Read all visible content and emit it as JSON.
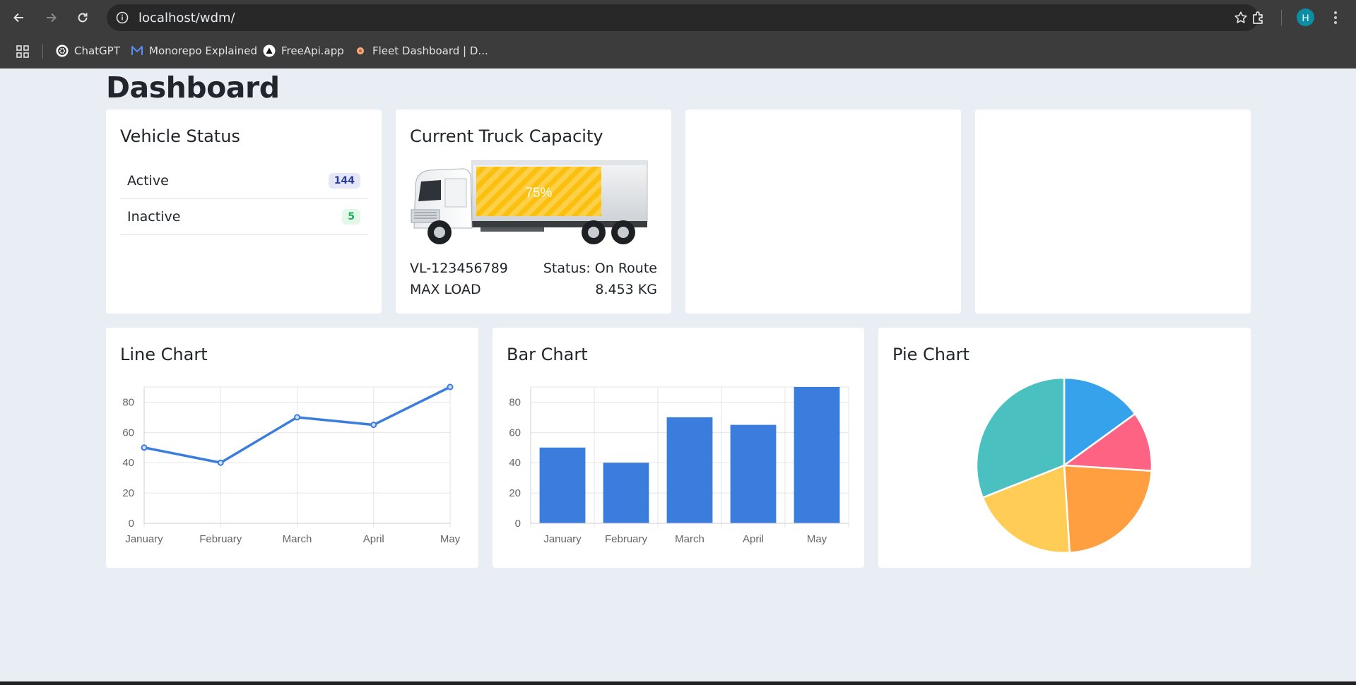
{
  "browser": {
    "url": "localhost/wdm/",
    "profile_initial": "H",
    "bookmarks": [
      {
        "label": "ChatGPT",
        "icon": "chatgpt-icon"
      },
      {
        "label": "Monorepo Explained",
        "icon": "monorepo-icon"
      },
      {
        "label": "FreeApi.app",
        "icon": "freeapi-icon"
      },
      {
        "label": "Fleet Dashboard | D...",
        "icon": "fleet-icon"
      }
    ]
  },
  "page": {
    "title": "Dashboard"
  },
  "vehicle_status": {
    "title": "Vehicle Status",
    "items": [
      {
        "label": "Active",
        "count": "144",
        "color": "#2b3c9c"
      },
      {
        "label": "Inactive",
        "count": "5",
        "color": "#1fae5c"
      }
    ]
  },
  "truck_capacity": {
    "title": "Current Truck Capacity",
    "fill_percent": 75,
    "fill_label": "75%",
    "vehicle_id": "VL-123456789",
    "status": "Status: On Route",
    "max_load_label": "MAX LOAD",
    "max_load_value": "8.453 KG",
    "fill_color": "#fbbf0e"
  },
  "line_chart": {
    "title": "Line Chart"
  },
  "bar_chart": {
    "title": "Bar Chart"
  },
  "pie_chart": {
    "title": "Pie Chart"
  },
  "chart_data": [
    {
      "type": "line",
      "title": "Line Chart",
      "categories": [
        "January",
        "February",
        "March",
        "April",
        "May"
      ],
      "values": [
        50,
        40,
        70,
        65,
        90
      ],
      "ylim": [
        0,
        90
      ],
      "yticks": [
        0,
        20,
        40,
        60,
        80
      ],
      "grid": true,
      "color": "#3b7ddd"
    },
    {
      "type": "bar",
      "title": "Bar Chart",
      "categories": [
        "January",
        "February",
        "March",
        "April",
        "May"
      ],
      "values": [
        50,
        40,
        70,
        65,
        90
      ],
      "ylim": [
        0,
        90
      ],
      "yticks": [
        0,
        20,
        40,
        60,
        80
      ],
      "grid": true,
      "color": "#3b7ddd"
    },
    {
      "type": "pie",
      "title": "Pie Chart",
      "values": [
        15,
        11,
        23,
        20,
        31
      ],
      "colors": [
        "#36a2eb",
        "#ff6384",
        "#ff9f40",
        "#ffcd56",
        "#4bc0c0"
      ]
    }
  ]
}
